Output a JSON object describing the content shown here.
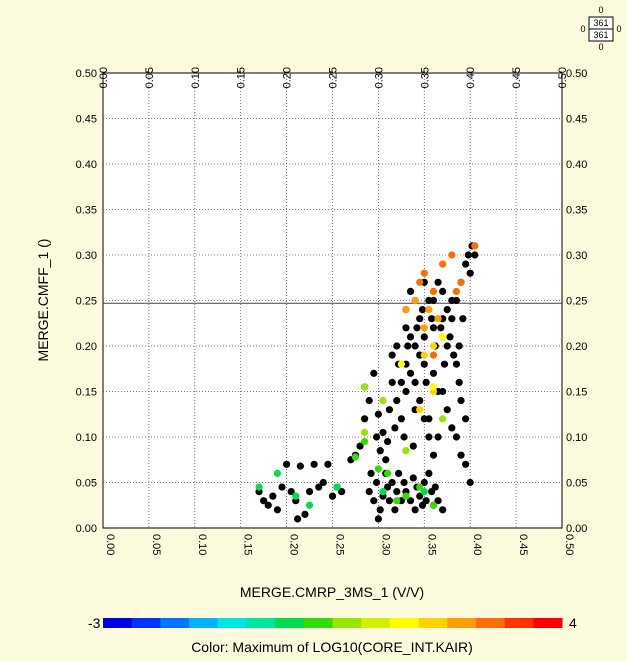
{
  "chart_data": {
    "type": "scatter",
    "title": "",
    "xlabel": "MERGE.CMRP_3MS_1 (V/V)",
    "ylabel": "MERGE.CMFF_1 ()",
    "xlim": [
      0,
      0.5
    ],
    "ylim": [
      0,
      0.5
    ],
    "x_ticks": [
      "0.00",
      "0.05",
      "0.10",
      "0.15",
      "0.20",
      "0.25",
      "0.30",
      "0.35",
      "0.40",
      "0.45",
      "0.50"
    ],
    "y_ticks": [
      "0.00",
      "0.05",
      "0.10",
      "0.15",
      "0.20",
      "0.25",
      "0.30",
      "0.35",
      "0.40",
      "0.45",
      "0.50"
    ],
    "grid": true,
    "reference_line_y": 0.247,
    "color_scale": {
      "label": "Color: Maximum of LOG10(CORE_INT.KAIR)",
      "min_label": "-3",
      "max_label": "4",
      "colors": [
        "#0000e6",
        "#0032ff",
        "#0073ff",
        "#00b4ff",
        "#00e6e6",
        "#00e6a0",
        "#00dc50",
        "#32dc00",
        "#96e600",
        "#d2f000",
        "#ffff00",
        "#ffd200",
        "#ffa000",
        "#ff6e00",
        "#ff3200",
        "#ff0000"
      ]
    },
    "stats_box": {
      "top": "0",
      "mid1": "361",
      "mid2": "361",
      "bottom": "0",
      "left": "0",
      "right": "0"
    },
    "series": [
      {
        "color": "#000000",
        "points": [
          [
            0.17,
            0.04
          ],
          [
            0.175,
            0.03
          ],
          [
            0.18,
            0.025
          ],
          [
            0.185,
            0.035
          ],
          [
            0.19,
            0.02
          ],
          [
            0.195,
            0.045
          ],
          [
            0.2,
            0.07
          ],
          [
            0.205,
            0.04
          ],
          [
            0.21,
            0.03
          ],
          [
            0.212,
            0.01
          ],
          [
            0.215,
            0.068
          ],
          [
            0.22,
            0.015
          ],
          [
            0.225,
            0.04
          ],
          [
            0.23,
            0.07
          ],
          [
            0.235,
            0.045
          ],
          [
            0.24,
            0.05
          ],
          [
            0.245,
            0.07
          ],
          [
            0.25,
            0.035
          ],
          [
            0.255,
            0.045
          ],
          [
            0.26,
            0.04
          ],
          [
            0.27,
            0.075
          ],
          [
            0.275,
            0.08
          ],
          [
            0.28,
            0.09
          ],
          [
            0.285,
            0.12
          ],
          [
            0.29,
            0.04
          ],
          [
            0.292,
            0.06
          ],
          [
            0.295,
            0.03
          ],
          [
            0.298,
            0.05
          ],
          [
            0.3,
            0.01
          ],
          [
            0.302,
            0.02
          ],
          [
            0.305,
            0.035
          ],
          [
            0.308,
            0.06
          ],
          [
            0.31,
            0.045
          ],
          [
            0.312,
            0.03
          ],
          [
            0.315,
            0.05
          ],
          [
            0.318,
            0.02
          ],
          [
            0.32,
            0.04
          ],
          [
            0.322,
            0.06
          ],
          [
            0.325,
            0.03
          ],
          [
            0.328,
            0.05
          ],
          [
            0.33,
            0.04
          ],
          [
            0.335,
            0.03
          ],
          [
            0.338,
            0.055
          ],
          [
            0.34,
            0.02
          ],
          [
            0.342,
            0.045
          ],
          [
            0.345,
            0.035
          ],
          [
            0.348,
            0.025
          ],
          [
            0.35,
            0.05
          ],
          [
            0.352,
            0.03
          ],
          [
            0.355,
            0.06
          ],
          [
            0.358,
            0.04
          ],
          [
            0.36,
            0.025
          ],
          [
            0.362,
            0.045
          ],
          [
            0.365,
            0.03
          ],
          [
            0.37,
            0.02
          ],
          [
            0.285,
            0.155
          ],
          [
            0.29,
            0.14
          ],
          [
            0.295,
            0.17
          ],
          [
            0.298,
            0.1
          ],
          [
            0.3,
            0.125
          ],
          [
            0.302,
            0.085
          ],
          [
            0.305,
            0.105
          ],
          [
            0.308,
            0.075
          ],
          [
            0.31,
            0.095
          ],
          [
            0.312,
            0.13
          ],
          [
            0.315,
            0.16
          ],
          [
            0.318,
            0.11
          ],
          [
            0.32,
            0.14
          ],
          [
            0.322,
            0.18
          ],
          [
            0.325,
            0.12
          ],
          [
            0.328,
            0.1
          ],
          [
            0.33,
            0.15
          ],
          [
            0.332,
            0.2
          ],
          [
            0.335,
            0.17
          ],
          [
            0.338,
            0.09
          ],
          [
            0.34,
            0.13
          ],
          [
            0.342,
            0.22
          ],
          [
            0.345,
            0.19
          ],
          [
            0.348,
            0.24
          ],
          [
            0.35,
            0.21
          ],
          [
            0.352,
            0.16
          ],
          [
            0.355,
            0.12
          ],
          [
            0.358,
            0.23
          ],
          [
            0.36,
            0.25
          ],
          [
            0.362,
            0.2
          ],
          [
            0.365,
            0.15
          ],
          [
            0.368,
            0.22
          ],
          [
            0.37,
            0.26
          ],
          [
            0.372,
            0.18
          ],
          [
            0.375,
            0.24
          ],
          [
            0.378,
            0.21
          ],
          [
            0.38,
            0.23
          ],
          [
            0.382,
            0.19
          ],
          [
            0.385,
            0.25
          ],
          [
            0.388,
            0.2
          ],
          [
            0.39,
            0.27
          ],
          [
            0.392,
            0.23
          ],
          [
            0.395,
            0.29
          ],
          [
            0.398,
            0.3
          ],
          [
            0.4,
            0.28
          ],
          [
            0.402,
            0.31
          ],
          [
            0.405,
            0.3
          ],
          [
            0.33,
            0.24
          ],
          [
            0.335,
            0.26
          ],
          [
            0.34,
            0.25
          ],
          [
            0.345,
            0.23
          ],
          [
            0.35,
            0.27
          ],
          [
            0.355,
            0.25
          ],
          [
            0.36,
            0.22
          ],
          [
            0.365,
            0.27
          ],
          [
            0.37,
            0.23
          ],
          [
            0.375,
            0.2
          ],
          [
            0.38,
            0.25
          ],
          [
            0.385,
            0.18
          ],
          [
            0.388,
            0.16
          ],
          [
            0.39,
            0.14
          ],
          [
            0.395,
            0.12
          ],
          [
            0.33,
            0.22
          ],
          [
            0.34,
            0.2
          ],
          [
            0.35,
            0.18
          ],
          [
            0.36,
            0.17
          ],
          [
            0.37,
            0.15
          ],
          [
            0.375,
            0.13
          ],
          [
            0.38,
            0.11
          ],
          [
            0.385,
            0.1
          ],
          [
            0.39,
            0.08
          ],
          [
            0.395,
            0.07
          ],
          [
            0.4,
            0.05
          ],
          [
            0.365,
            0.1
          ],
          [
            0.36,
            0.08
          ],
          [
            0.355,
            0.1
          ],
          [
            0.35,
            0.12
          ],
          [
            0.345,
            0.14
          ],
          [
            0.34,
            0.16
          ],
          [
            0.335,
            0.21
          ],
          [
            0.33,
            0.18
          ],
          [
            0.325,
            0.16
          ],
          [
            0.32,
            0.2
          ],
          [
            0.315,
            0.19
          ]
        ]
      },
      {
        "color": "#ff6e00",
        "points": [
          [
            0.35,
            0.28
          ],
          [
            0.36,
            0.26
          ],
          [
            0.37,
            0.29
          ],
          [
            0.38,
            0.3
          ],
          [
            0.39,
            0.27
          ],
          [
            0.405,
            0.31
          ],
          [
            0.36,
            0.19
          ],
          [
            0.345,
            0.27
          ],
          [
            0.385,
            0.26
          ]
        ]
      },
      {
        "color": "#ffa000",
        "points": [
          [
            0.33,
            0.24
          ],
          [
            0.34,
            0.25
          ],
          [
            0.355,
            0.24
          ],
          [
            0.365,
            0.23
          ],
          [
            0.37,
            0.21
          ],
          [
            0.35,
            0.22
          ]
        ]
      },
      {
        "color": "#ffd200",
        "points": [
          [
            0.36,
            0.2
          ],
          [
            0.36,
            0.15
          ],
          [
            0.35,
            0.19
          ],
          [
            0.345,
            0.13
          ]
        ]
      },
      {
        "color": "#ffff00",
        "points": [
          [
            0.325,
            0.18
          ],
          [
            0.37,
            0.21
          ],
          [
            0.36,
            0.155
          ]
        ]
      },
      {
        "color": "#96e600",
        "points": [
          [
            0.285,
            0.155
          ],
          [
            0.285,
            0.105
          ],
          [
            0.305,
            0.14
          ],
          [
            0.33,
            0.085
          ],
          [
            0.37,
            0.12
          ]
        ]
      },
      {
        "color": "#32dc00",
        "points": [
          [
            0.285,
            0.095
          ],
          [
            0.275,
            0.078
          ],
          [
            0.3,
            0.065
          ],
          [
            0.31,
            0.06
          ],
          [
            0.345,
            0.045
          ],
          [
            0.33,
            0.035
          ],
          [
            0.32,
            0.03
          ],
          [
            0.36,
            0.025
          ]
        ]
      },
      {
        "color": "#00dc50",
        "points": [
          [
            0.17,
            0.045
          ],
          [
            0.19,
            0.06
          ],
          [
            0.21,
            0.035
          ],
          [
            0.225,
            0.025
          ],
          [
            0.255,
            0.045
          ],
          [
            0.305,
            0.04
          ],
          [
            0.35,
            0.04
          ]
        ]
      }
    ]
  }
}
